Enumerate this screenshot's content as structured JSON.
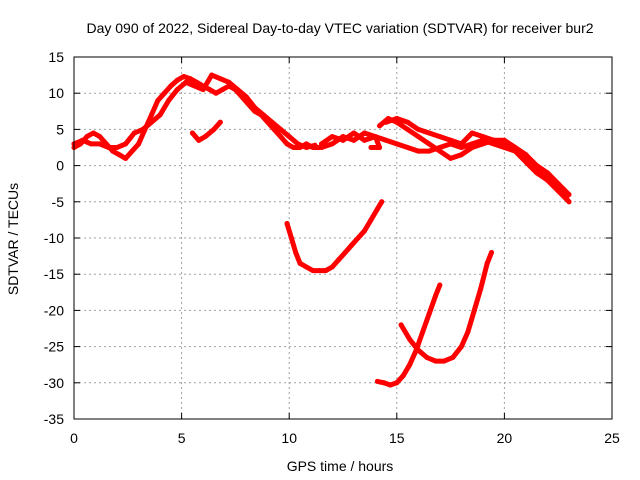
{
  "chart_data": {
    "type": "scatter",
    "title": "Day 090 of 2022, Sidereal Day-to-day VTEC variation (SDTVAR) for receiver bur2",
    "xlabel": "GPS time / hours",
    "ylabel": "SDTVAR / TECUs",
    "xlim": [
      0,
      25
    ],
    "ylim": [
      -35,
      15
    ],
    "x_ticks": [
      0,
      5,
      10,
      15,
      20,
      25
    ],
    "y_ticks": [
      -35,
      -30,
      -25,
      -20,
      -15,
      -10,
      -5,
      0,
      5,
      10,
      15
    ],
    "grid": true,
    "legend": "none",
    "series_color": "#ff0000",
    "series": [
      {
        "name": "s1",
        "points": [
          [
            0,
            2.5
          ],
          [
            0.3,
            3
          ],
          [
            0.6,
            4
          ],
          [
            0.9,
            4.5
          ],
          [
            1.2,
            4
          ],
          [
            1.5,
            3
          ],
          [
            1.8,
            2
          ],
          [
            2.1,
            1.5
          ],
          [
            2.4,
            1
          ],
          [
            2.7,
            2
          ],
          [
            3,
            3
          ],
          [
            3.3,
            5
          ],
          [
            3.6,
            7
          ],
          [
            3.9,
            9
          ],
          [
            4.2,
            10
          ],
          [
            4.5,
            11
          ],
          [
            4.8,
            11.8
          ],
          [
            5.1,
            12.3
          ],
          [
            5.4,
            12
          ],
          [
            5.7,
            11.5
          ],
          [
            6,
            11
          ],
          [
            6.3,
            10.5
          ],
          [
            6.6,
            10
          ],
          [
            6.9,
            10.5
          ],
          [
            7.2,
            11
          ],
          [
            7.5,
            10.5
          ],
          [
            7.8,
            9.5
          ],
          [
            8.1,
            8.5
          ],
          [
            8.4,
            7.5
          ],
          [
            8.7,
            7
          ],
          [
            9,
            6
          ],
          [
            9.3,
            5
          ],
          [
            9.6,
            4
          ],
          [
            9.9,
            3
          ],
          [
            10.2,
            2.5
          ],
          [
            10.5,
            2.5
          ],
          [
            10.8,
            3
          ],
          [
            11.1,
            2.5
          ],
          [
            11.4,
            2.5
          ]
        ]
      },
      {
        "name": "s2",
        "points": [
          [
            0,
            3
          ],
          [
            0.4,
            3.5
          ],
          [
            0.8,
            3
          ],
          [
            1.2,
            3
          ],
          [
            1.6,
            2.5
          ],
          [
            2,
            2.5
          ],
          [
            2.4,
            3
          ],
          [
            2.8,
            4.5
          ],
          [
            3.2,
            5
          ],
          [
            3.6,
            6
          ],
          [
            4,
            7
          ],
          [
            4.4,
            9
          ],
          [
            4.8,
            10.5
          ],
          [
            5.2,
            11.5
          ],
          [
            5.6,
            11
          ],
          [
            6,
            10.5
          ],
          [
            6.4,
            12.5
          ],
          [
            6.8,
            12
          ],
          [
            7.2,
            11.5
          ],
          [
            7.6,
            10.5
          ],
          [
            8,
            9.5
          ],
          [
            8.4,
            8
          ],
          [
            8.8,
            7
          ],
          [
            9.2,
            6
          ],
          [
            9.6,
            5
          ],
          [
            10,
            4
          ],
          [
            10.4,
            3
          ],
          [
            10.8,
            2.5
          ],
          [
            11.2,
            2.8
          ]
        ]
      },
      {
        "name": "s3",
        "points": [
          [
            5.5,
            4.5
          ],
          [
            5.8,
            3.5
          ],
          [
            6.1,
            4
          ],
          [
            6.5,
            5
          ],
          [
            6.8,
            6
          ]
        ]
      },
      {
        "name": "s4",
        "points": [
          [
            11.5,
            2.5
          ],
          [
            12,
            3
          ],
          [
            12.5,
            4
          ],
          [
            13,
            3.5
          ],
          [
            13.5,
            4.5
          ],
          [
            14,
            4
          ],
          [
            14.5,
            3.5
          ],
          [
            15,
            3
          ],
          [
            15.5,
            2.5
          ],
          [
            16,
            2
          ],
          [
            16.5,
            2
          ],
          [
            17,
            2.5
          ],
          [
            17.5,
            3
          ],
          [
            18,
            2.5
          ],
          [
            18.5,
            3
          ],
          [
            19,
            3.5
          ],
          [
            19.5,
            3
          ],
          [
            20,
            2.5
          ],
          [
            20.5,
            2
          ],
          [
            21,
            0.5
          ],
          [
            21.5,
            -1
          ],
          [
            22,
            -2
          ],
          [
            22.5,
            -3.5
          ],
          [
            23,
            -5
          ]
        ]
      },
      {
        "name": "s5",
        "points": [
          [
            11.5,
            3
          ],
          [
            12,
            4
          ],
          [
            12.5,
            3.5
          ],
          [
            13,
            4.5
          ],
          [
            13.5,
            3.5
          ],
          [
            14,
            4
          ],
          [
            14.2,
            2.5
          ],
          [
            13.8,
            2.5
          ]
        ]
      },
      {
        "name": "s6",
        "points": [
          [
            14.2,
            5.5
          ],
          [
            14.6,
            6.5
          ],
          [
            15,
            6
          ],
          [
            15.5,
            5
          ],
          [
            16,
            4
          ],
          [
            16.5,
            3
          ],
          [
            17,
            2
          ],
          [
            17.5,
            1
          ],
          [
            18,
            1.5
          ],
          [
            18.5,
            2.5
          ],
          [
            19,
            3
          ],
          [
            19.5,
            3.5
          ],
          [
            20,
            3
          ],
          [
            20.5,
            2
          ],
          [
            21,
            1
          ],
          [
            21.5,
            -0.5
          ],
          [
            22,
            -1.5
          ],
          [
            22.5,
            -3
          ],
          [
            22.9,
            -4.5
          ]
        ]
      },
      {
        "name": "s7",
        "points": [
          [
            14.5,
            6
          ],
          [
            15,
            6.5
          ],
          [
            15.5,
            6
          ],
          [
            16,
            5
          ],
          [
            16.5,
            4.5
          ],
          [
            17,
            4
          ],
          [
            17.5,
            3.5
          ],
          [
            18,
            3
          ],
          [
            18.5,
            4.5
          ],
          [
            19,
            4
          ],
          [
            19.5,
            3.5
          ],
          [
            20,
            3.5
          ],
          [
            20.5,
            2.5
          ],
          [
            21,
            1.5
          ],
          [
            21.5,
            0
          ],
          [
            22,
            -1
          ],
          [
            22.5,
            -2.5
          ],
          [
            23,
            -4
          ]
        ]
      },
      {
        "name": "s8",
        "points": [
          [
            9.9,
            -8
          ],
          [
            10.1,
            -10
          ],
          [
            10.3,
            -12
          ],
          [
            10.5,
            -13.5
          ],
          [
            10.8,
            -14
          ],
          [
            11.1,
            -14.5
          ],
          [
            11.4,
            -14.5
          ],
          [
            11.7,
            -14.5
          ],
          [
            12,
            -14
          ],
          [
            12.3,
            -13
          ],
          [
            12.6,
            -12
          ],
          [
            12.9,
            -11
          ],
          [
            13.2,
            -10
          ],
          [
            13.5,
            -9
          ],
          [
            13.8,
            -7.5
          ],
          [
            14.1,
            -6
          ],
          [
            14.3,
            -5
          ]
        ]
      },
      {
        "name": "s9",
        "points": [
          [
            14.1,
            -29.8
          ],
          [
            14.4,
            -30
          ],
          [
            14.7,
            -30.3
          ],
          [
            15,
            -30
          ],
          [
            15.3,
            -29
          ],
          [
            15.6,
            -27.5
          ],
          [
            15.9,
            -25.5
          ],
          [
            16.2,
            -23
          ],
          [
            16.5,
            -20.5
          ],
          [
            16.8,
            -18
          ],
          [
            17,
            -16.5
          ]
        ]
      },
      {
        "name": "s10",
        "points": [
          [
            15.2,
            -22
          ],
          [
            15.6,
            -24
          ],
          [
            16,
            -25.5
          ],
          [
            16.4,
            -26.5
          ],
          [
            16.8,
            -27
          ],
          [
            17.2,
            -27
          ],
          [
            17.6,
            -26.5
          ],
          [
            18,
            -25
          ],
          [
            18.3,
            -23
          ],
          [
            18.6,
            -20
          ],
          [
            18.9,
            -17
          ],
          [
            19.2,
            -13.5
          ],
          [
            19.4,
            -12
          ]
        ]
      }
    ]
  }
}
